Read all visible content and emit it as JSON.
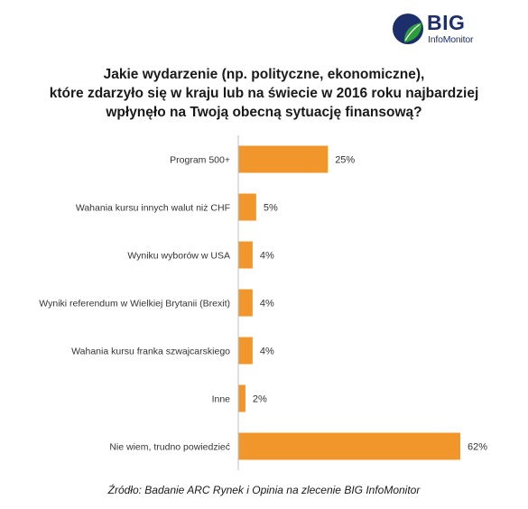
{
  "logo": {
    "big": "BIG",
    "sub": "InfoMonitor"
  },
  "title_lines": [
    "Jakie wydarzenie (np. polityczne, ekonomiczne),",
    "które zdarzyło się w kraju lub na świecie w 2016 roku najbardziej",
    "wpłynęło na Twoją obecną sytuację finansową?"
  ],
  "source": "Źródło: Badanie ARC Rynek i Opinia na zlecenie BIG InfoMonitor",
  "colors": {
    "bar": "#f0962a",
    "axis": "#bfbfbf",
    "logo_blue": "#1c2f6b",
    "logo_green": "#2e9e3d"
  },
  "chart_data": {
    "type": "bar",
    "orientation": "horizontal",
    "categories": [
      "Program 500+",
      "Wahania kursu innych walut niż CHF",
      "Wyniku wyborów w USA",
      "Wyniki referendum w Wielkiej Brytanii (Brexit)",
      "Wahania kursu franka szwajcarskiego",
      "Inne",
      "Nie wiem, trudno powiedzieć"
    ],
    "values": [
      25,
      5,
      4,
      4,
      4,
      2,
      62
    ],
    "value_labels": [
      "25%",
      "5%",
      "4%",
      "4%",
      "4%",
      "2%",
      "62%"
    ],
    "xlim": [
      0,
      62
    ],
    "grid": false,
    "legend": false
  }
}
